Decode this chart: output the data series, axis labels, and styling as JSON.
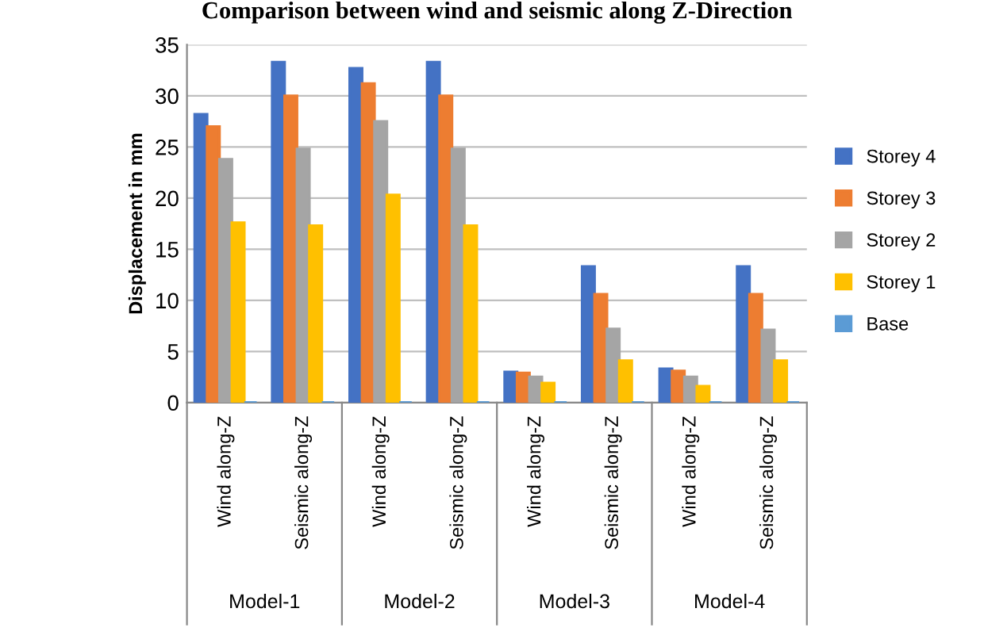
{
  "chart_data": {
    "type": "bar",
    "title": "Comparison between wind and seismic along Z-Direction",
    "ylabel": "Displacement in mm",
    "categories": [
      "Wind along-Z",
      "Seismic along-Z",
      "Wind along-Z",
      "Seismic along-Z",
      "Wind along-Z",
      "Seismic along-Z",
      "Wind along-Z",
      "Seismic along-Z"
    ],
    "annotations": [
      "Model-1",
      "Model-2",
      "Model-3",
      "Model-4"
    ],
    "series": [
      {
        "name": "Storey 4",
        "color": "#4472c4",
        "values": [
          28.2,
          33.3,
          32.7,
          33.3,
          3.0,
          13.3,
          3.3,
          13.3
        ]
      },
      {
        "name": "Storey 3",
        "color": "#ed7d31",
        "values": [
          27.0,
          30.0,
          31.2,
          30.0,
          2.9,
          10.6,
          3.1,
          10.6
        ]
      },
      {
        "name": "Storey 2",
        "color": "#a5a5a5",
        "values": [
          23.8,
          24.8,
          27.5,
          24.8,
          2.5,
          7.2,
          2.5,
          7.1
        ]
      },
      {
        "name": "Storey 1",
        "color": "#ffc000",
        "values": [
          17.6,
          17.3,
          20.3,
          17.3,
          1.9,
          4.1,
          1.6,
          4.1
        ]
      },
      {
        "name": "Base",
        "color": "#5b9bd5",
        "values": [
          0,
          0,
          0,
          0,
          0,
          0,
          0,
          0
        ]
      }
    ],
    "ylim": [
      0,
      35
    ],
    "yticks": [
      0,
      5,
      10,
      15,
      20,
      25,
      30,
      35
    ],
    "grid": "y",
    "legend": "right"
  }
}
